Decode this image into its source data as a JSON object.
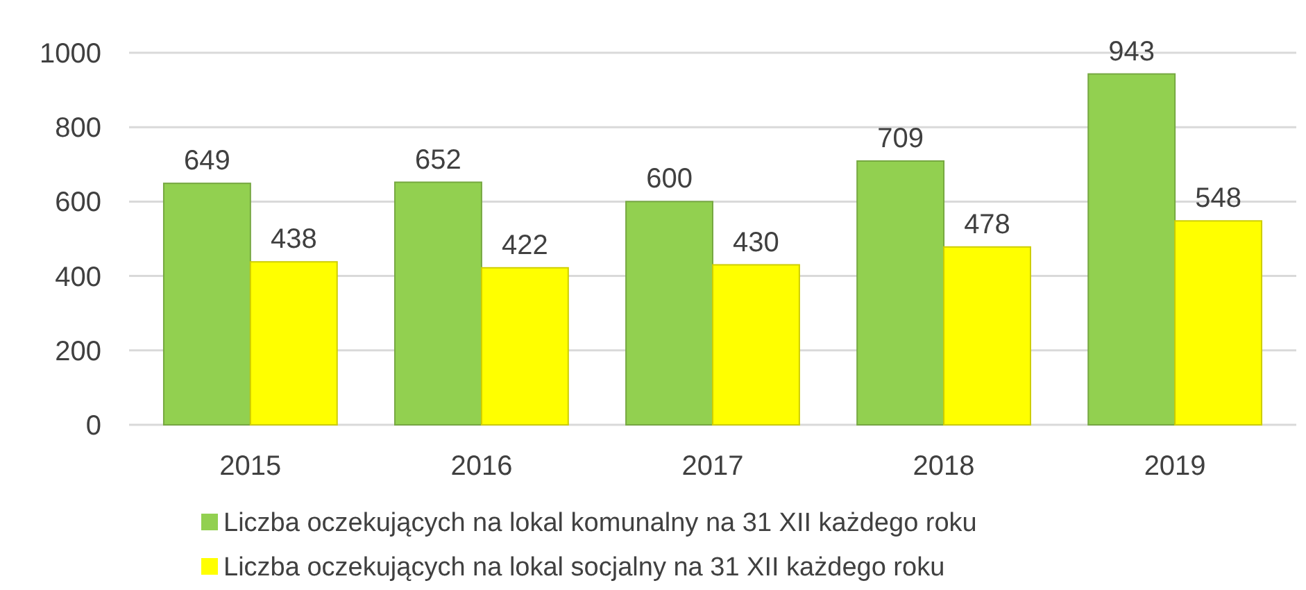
{
  "chart_data": {
    "type": "bar",
    "categories": [
      "2015",
      "2016",
      "2017",
      "2018",
      "2019"
    ],
    "series": [
      {
        "name": "Liczba oczekujących na lokal komunalny na 31 XII każdego roku",
        "color": "#92d050",
        "values": [
          649,
          652,
          600,
          709,
          943
        ]
      },
      {
        "name": "Liczba oczekujących na lokal socjalny na 31 XII każdego roku",
        "color": "#ffff00",
        "values": [
          438,
          422,
          430,
          478,
          548
        ]
      }
    ],
    "ylim": [
      0,
      1000
    ],
    "yticks": [
      0,
      200,
      400,
      600,
      800,
      1000
    ],
    "grid": "y",
    "data_labels": true,
    "legend": "bottom"
  }
}
